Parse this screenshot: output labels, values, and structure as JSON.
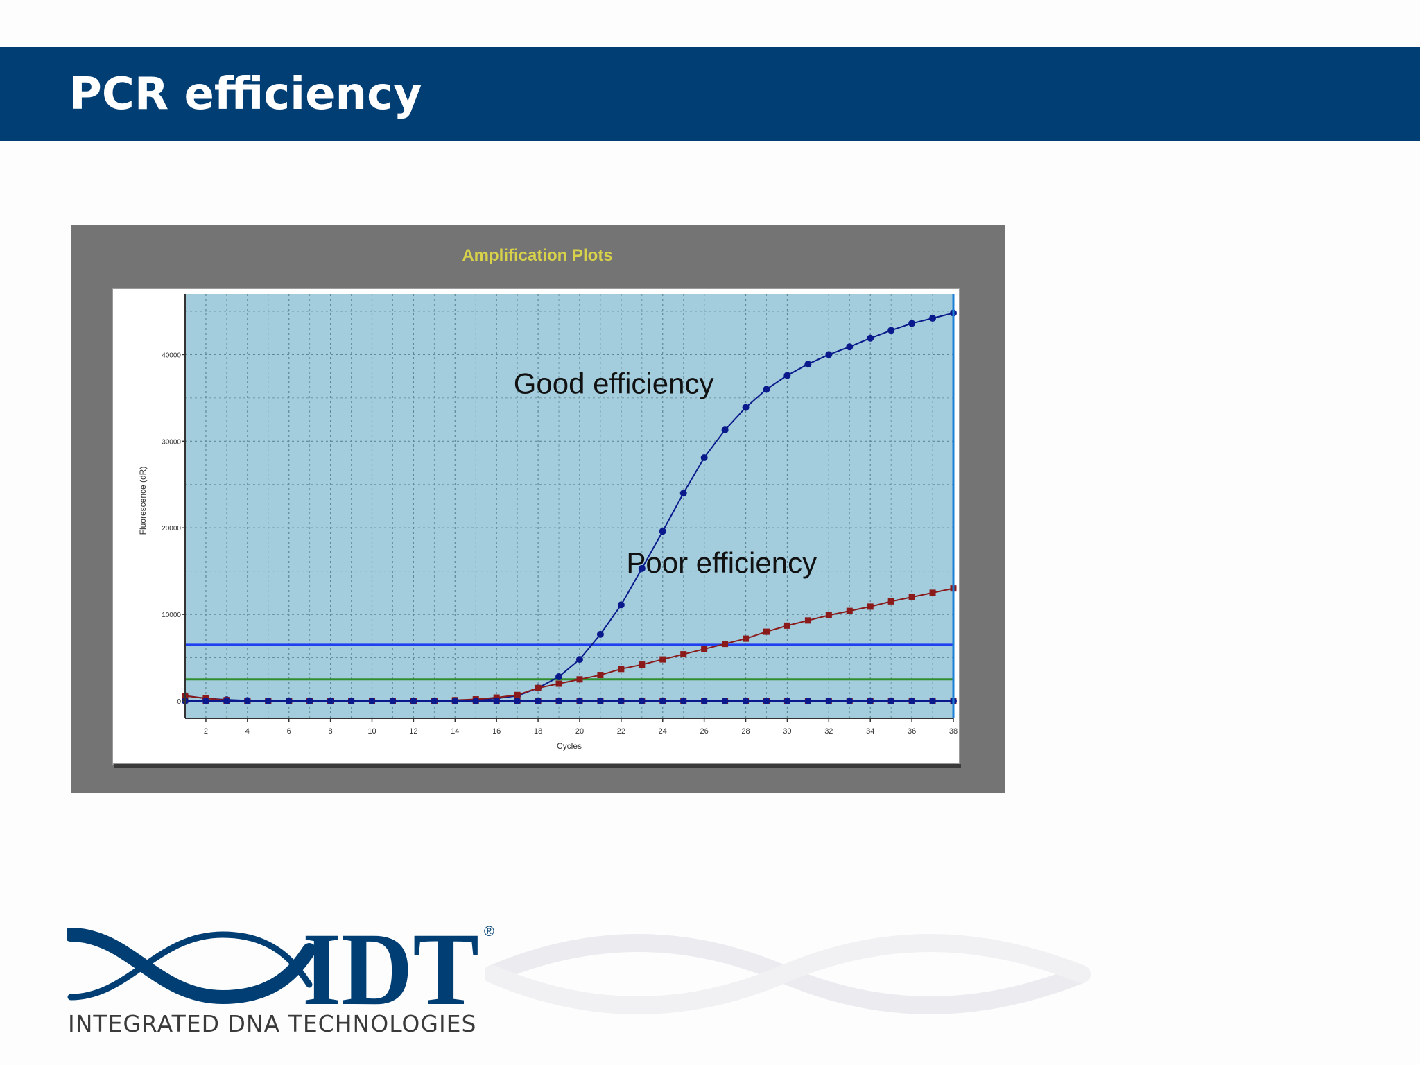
{
  "slide": {
    "title": "PCR efficiency"
  },
  "chart_data": {
    "type": "line",
    "title": "Amplification Plots",
    "xlabel": "Cycles",
    "ylabel": "Fluorescence (dR)",
    "xlim": [
      1,
      38
    ],
    "ylim": [
      -2000,
      47000
    ],
    "x_ticks": [
      2,
      4,
      6,
      8,
      10,
      12,
      14,
      16,
      18,
      20,
      22,
      24,
      26,
      28,
      30,
      32,
      34,
      36,
      38
    ],
    "y_ticks": [
      0,
      10000,
      20000,
      30000,
      40000
    ],
    "grid": true,
    "x": [
      1,
      2,
      3,
      4,
      5,
      6,
      7,
      8,
      9,
      10,
      11,
      12,
      13,
      14,
      15,
      16,
      17,
      18,
      19,
      20,
      21,
      22,
      23,
      24,
      25,
      26,
      27,
      28,
      29,
      30,
      31,
      32,
      33,
      34,
      35,
      36,
      37,
      38
    ],
    "series": [
      {
        "color": "#0a1a8c",
        "marker": "circle",
        "values": [
          600,
          300,
          150,
          50,
          0,
          0,
          0,
          0,
          0,
          0,
          0,
          0,
          0,
          0,
          100,
          300,
          600,
          1500,
          2800,
          4800,
          7700,
          11100,
          15300,
          19600,
          24000,
          28100,
          31300,
          33900,
          36000,
          37600,
          38900,
          40000,
          40900,
          41900,
          42800,
          43600,
          44200,
          44800
        ]
      },
      {
        "color": "#8b1a1a",
        "marker": "square",
        "values": [
          600,
          300,
          100,
          0,
          0,
          0,
          0,
          0,
          0,
          0,
          0,
          0,
          0,
          100,
          200,
          400,
          700,
          1500,
          2000,
          2500,
          3000,
          3700,
          4200,
          4800,
          5400,
          6000,
          6600,
          7200,
          8000,
          8700,
          9300,
          9900,
          10400,
          10900,
          11500,
          12000,
          12500,
          13000
        ]
      },
      {
        "color": "#8b1a1a",
        "marker": "square",
        "values": [
          100,
          0,
          0,
          0,
          0,
          0,
          0,
          0,
          0,
          0,
          0,
          0,
          0,
          0,
          0,
          0,
          0,
          0,
          0,
          0,
          0,
          0,
          0,
          0,
          0,
          0,
          0,
          0,
          0,
          0,
          0,
          0,
          0,
          0,
          0,
          0,
          0,
          0
        ]
      },
      {
        "color": "#0a1a8c",
        "marker": "circle",
        "values": [
          0,
          0,
          0,
          0,
          0,
          0,
          0,
          0,
          0,
          0,
          0,
          0,
          0,
          0,
          0,
          0,
          0,
          0,
          0,
          0,
          0,
          0,
          0,
          0,
          0,
          0,
          0,
          0,
          0,
          0,
          0,
          0,
          0,
          0,
          0,
          0,
          0,
          0
        ]
      }
    ],
    "thresholds": [
      {
        "value": 6500,
        "color": "#1f3ff0"
      },
      {
        "value": 2500,
        "color": "#2f8f2f"
      }
    ],
    "annotations": [
      {
        "text": "Good efficiency",
        "x": 24.5,
        "y": 35500
      },
      {
        "text": "Poor efficiency",
        "x": 31,
        "y": 14800
      }
    ],
    "colors": {
      "frame": "#747474",
      "plot_background": "#a3ccdc",
      "title": "#d8d24a"
    }
  },
  "logo": {
    "wordmark": "IDT",
    "registered": "®",
    "tagline": "INTEGRATED DNA TECHNOLOGIES",
    "color": "#003e73"
  }
}
